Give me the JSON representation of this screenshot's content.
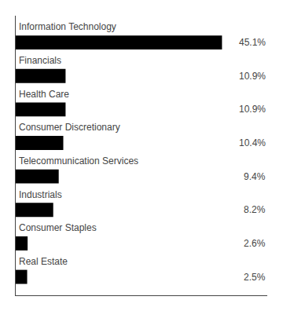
{
  "chart_data": {
    "type": "bar",
    "orientation": "horizontal",
    "categories": [
      "Real Estate",
      "Consumer Staples",
      "Industrials",
      "Telecommunication Services",
      "Consumer Discretionary",
      "Health Care",
      "Financials",
      "Information Technology"
    ],
    "values": [
      2.5,
      2.6,
      8.2,
      9.4,
      10.4,
      10.9,
      10.9,
      45.1
    ],
    "value_labels": [
      "2.5%",
      "2.6%",
      "8.2%",
      "9.4%",
      "10.4%",
      "10.9%",
      "10.9%",
      "45.1%"
    ],
    "data_labels": true,
    "color": "#000000",
    "xlim": [
      0,
      55
    ],
    "tick_labels": false,
    "grid": false
  }
}
